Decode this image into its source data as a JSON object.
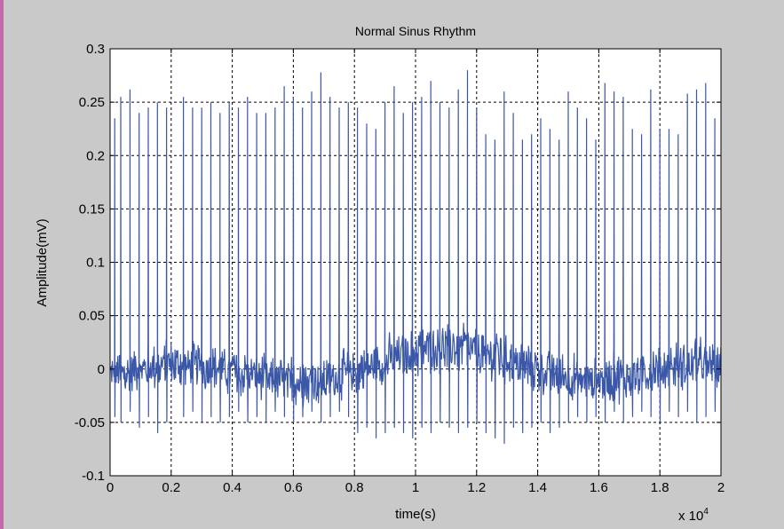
{
  "colors": {
    "figure_background": "#c9c9c9",
    "axes_background": "#ffffff",
    "trace": "#3a57a8",
    "grid": "#000000"
  },
  "chart_data": {
    "type": "line",
    "title": "Normal Sinus Rhythm",
    "xlabel": "time(s)",
    "ylabel": "Amplitude(mV)",
    "x_exponent_label": "x 10",
    "x_exponent_power": "4",
    "xlim": [
      0,
      20000
    ],
    "ylim": [
      -0.1,
      0.3
    ],
    "x_ticks": [
      0,
      2000,
      4000,
      6000,
      8000,
      10000,
      12000,
      14000,
      16000,
      18000,
      20000
    ],
    "x_tick_labels": [
      "0",
      "0.2",
      "0.4",
      "0.6",
      "0.8",
      "1",
      "1.2",
      "1.4",
      "1.6",
      "1.8",
      "2"
    ],
    "y_ticks": [
      -0.1,
      -0.05,
      0,
      0.05,
      0.1,
      0.15,
      0.2,
      0.25,
      0.3
    ],
    "y_tick_labels": [
      "-0.1",
      "-0.05",
      "0",
      "0.05",
      "0.1",
      "0.15",
      "0.2",
      "0.25",
      "0.3"
    ],
    "grid": true,
    "grid_style": "dashed",
    "series": [
      {
        "beats": {
          "r_peak_times": [
            150,
            350,
            650,
            950,
            1250,
            1550,
            1850,
            2400,
            2700,
            3000,
            3300,
            3600,
            3900,
            4200,
            4500,
            4800,
            5100,
            5400,
            5700,
            6000,
            6300,
            6600,
            6900,
            7200,
            7500,
            7800,
            8100,
            8400,
            8700,
            9000,
            9300,
            9600,
            9900,
            10200,
            10500,
            10800,
            11100,
            11400,
            11700,
            12000,
            12300,
            12600,
            12900,
            13200,
            13500,
            13800,
            14100,
            14400,
            14700,
            15000,
            15300,
            15600,
            15900,
            16200,
            16500,
            16800,
            17100,
            17400,
            17700,
            18000,
            18300,
            18600,
            18900,
            19200,
            19500,
            19800
          ],
          "r_peak_amplitudes": [
            0.235,
            0.255,
            0.262,
            0.24,
            0.245,
            0.25,
            0.245,
            0.255,
            0.245,
            0.245,
            0.25,
            0.24,
            0.25,
            0.245,
            0.255,
            0.24,
            0.24,
            0.245,
            0.265,
            0.255,
            0.245,
            0.26,
            0.278,
            0.255,
            0.245,
            0.25,
            0.245,
            0.23,
            0.225,
            0.25,
            0.265,
            0.24,
            0.25,
            0.255,
            0.27,
            0.25,
            0.245,
            0.262,
            0.28,
            0.245,
            0.22,
            0.215,
            0.26,
            0.24,
            0.215,
            0.22,
            0.235,
            0.225,
            0.215,
            0.26,
            0.245,
            0.235,
            0.215,
            0.268,
            0.26,
            0.255,
            0.225,
            0.22,
            0.262,
            0.225,
            0.225,
            0.22,
            0.258,
            0.262,
            0.268,
            0.235
          ],
          "s_wave_amplitudes": [
            -0.045,
            -0.05,
            -0.04,
            -0.055,
            -0.045,
            -0.06,
            -0.05,
            -0.045,
            -0.04,
            -0.05,
            -0.045,
            -0.05,
            -0.045,
            -0.04,
            -0.05,
            -0.045,
            -0.05,
            -0.04,
            -0.045,
            -0.05,
            -0.045,
            -0.04,
            -0.05,
            -0.045,
            -0.04,
            -0.045,
            -0.06,
            -0.055,
            -0.065,
            -0.06,
            -0.055,
            -0.06,
            -0.065,
            -0.055,
            -0.06,
            -0.05,
            -0.055,
            -0.06,
            -0.055,
            -0.05,
            -0.06,
            -0.065,
            -0.07,
            -0.055,
            -0.06,
            -0.055,
            -0.05,
            -0.06,
            -0.055,
            -0.05,
            -0.045,
            -0.05,
            -0.045,
            -0.05,
            -0.04,
            -0.05,
            -0.045,
            -0.04,
            -0.045,
            -0.05,
            -0.04,
            -0.045,
            -0.04,
            -0.05,
            -0.045,
            -0.04
          ],
          "noise_level": 0.018,
          "baseline_wander": 0.012
        }
      }
    ]
  }
}
